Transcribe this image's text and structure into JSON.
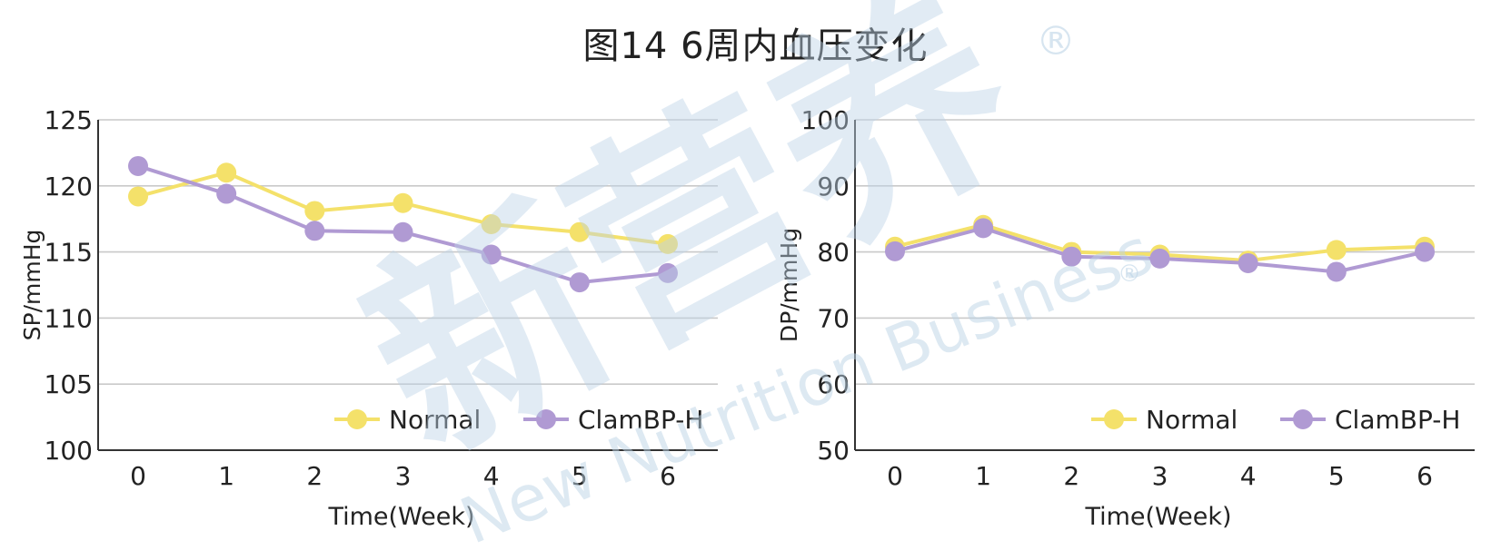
{
  "title": "图14 6周内血压变化",
  "watermark": {
    "text_cn": "新营养",
    "text_en": "New Nutrition Business",
    "mark": "®",
    "color": "#bcd3e6"
  },
  "colors": {
    "normal": "#f4e16a",
    "clam": "#b09ad3",
    "grid": "#c9c9c9",
    "axis": "#333333",
    "text": "#222222"
  },
  "chart_data": [
    {
      "type": "line",
      "title": "",
      "xlabel": "Time(Week)",
      "ylabel": "SP/mmHg",
      "x": [
        0,
        1,
        2,
        3,
        4,
        5,
        6
      ],
      "ylim": [
        100,
        125
      ],
      "yticks": [
        100,
        105,
        110,
        115,
        120,
        125
      ],
      "grid": true,
      "legend_position": "bottom-right",
      "series": [
        {
          "name": "Normal",
          "color": "#f4e16a",
          "values": [
            119.2,
            121.0,
            118.1,
            118.7,
            117.1,
            116.5,
            115.6
          ]
        },
        {
          "name": "ClamBP-H",
          "color": "#b09ad3",
          "values": [
            121.5,
            119.4,
            116.6,
            116.5,
            114.8,
            112.7,
            113.4
          ]
        }
      ]
    },
    {
      "type": "line",
      "title": "",
      "xlabel": "Time(Week)",
      "ylabel": "DP/mmHg",
      "x": [
        0,
        1,
        2,
        3,
        4,
        5,
        6
      ],
      "ylim": [
        50,
        100
      ],
      "yticks": [
        50,
        60,
        70,
        80,
        90,
        100
      ],
      "grid": true,
      "legend_position": "bottom-right",
      "series": [
        {
          "name": "Normal",
          "color": "#f4e16a",
          "values": [
            80.8,
            84.1,
            80.0,
            79.6,
            78.7,
            80.3,
            80.8
          ]
        },
        {
          "name": "ClamBP-H",
          "color": "#b09ad3",
          "values": [
            80.1,
            83.6,
            79.3,
            79.0,
            78.3,
            77.0,
            80.0
          ]
        }
      ]
    }
  ]
}
